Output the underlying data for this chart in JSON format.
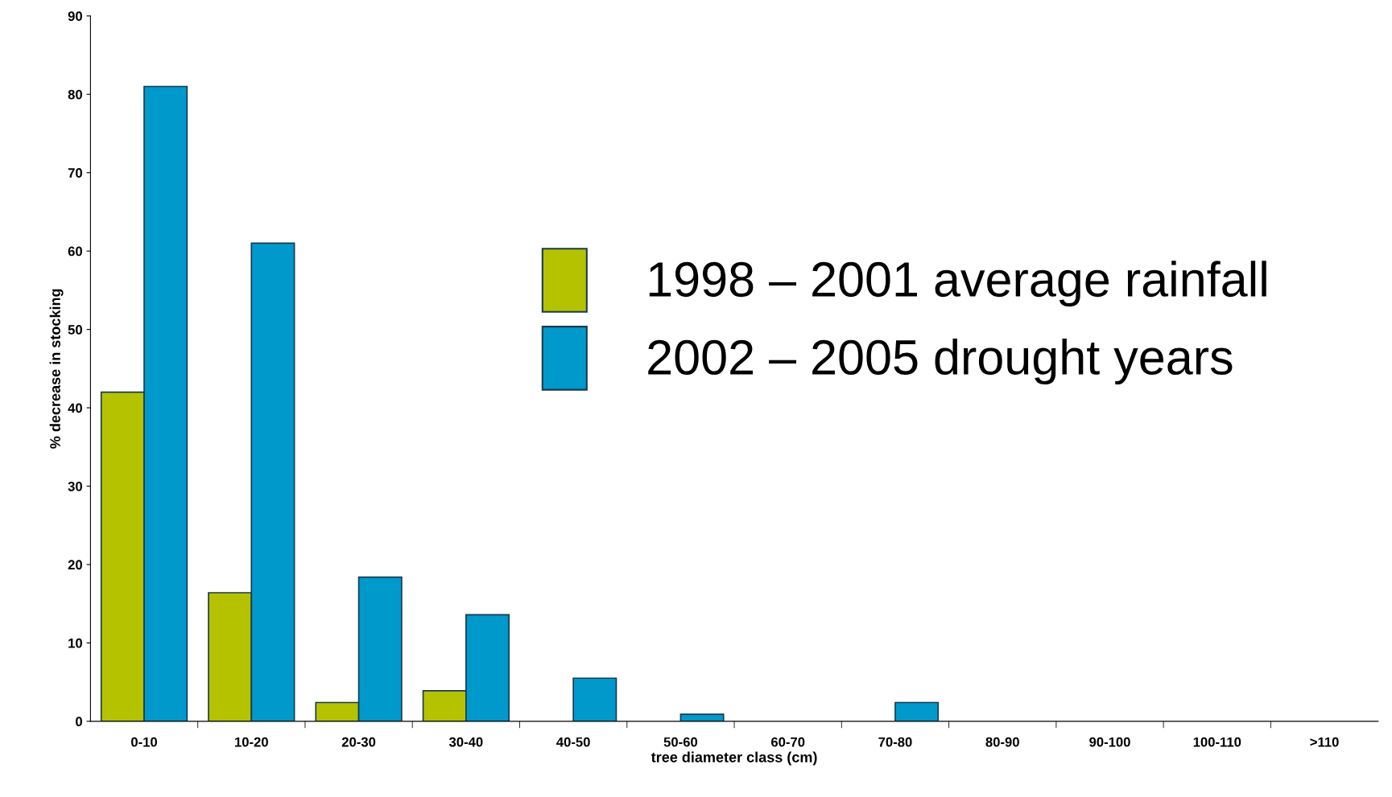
{
  "chart_data": {
    "type": "bar",
    "xlabel": "tree diameter class (cm)",
    "ylabel": "% decrease in stocking",
    "categories": [
      "0-10",
      "10-20",
      "20-30",
      "30-40",
      "40-50",
      "50-60",
      "60-70",
      "70-80",
      "80-90",
      "90-100",
      "100-110",
      ">110"
    ],
    "series": [
      {
        "name": "1998 – 2001 average rainfall",
        "color": "#b5c200",
        "values": [
          42,
          16.4,
          2.4,
          3.9,
          0,
          0,
          0,
          0,
          0,
          0,
          0,
          0
        ]
      },
      {
        "name": "2002 – 2005 drought years",
        "color": "#0099cc",
        "values": [
          81,
          61,
          18.4,
          13.6,
          5.5,
          0.9,
          0,
          2.4,
          0,
          0,
          0,
          0
        ]
      }
    ],
    "ylim": [
      0,
      90
    ],
    "yticks": [
      0,
      10,
      20,
      30,
      40,
      50,
      60,
      70,
      80,
      90
    ],
    "grid": false,
    "legend": "right"
  }
}
